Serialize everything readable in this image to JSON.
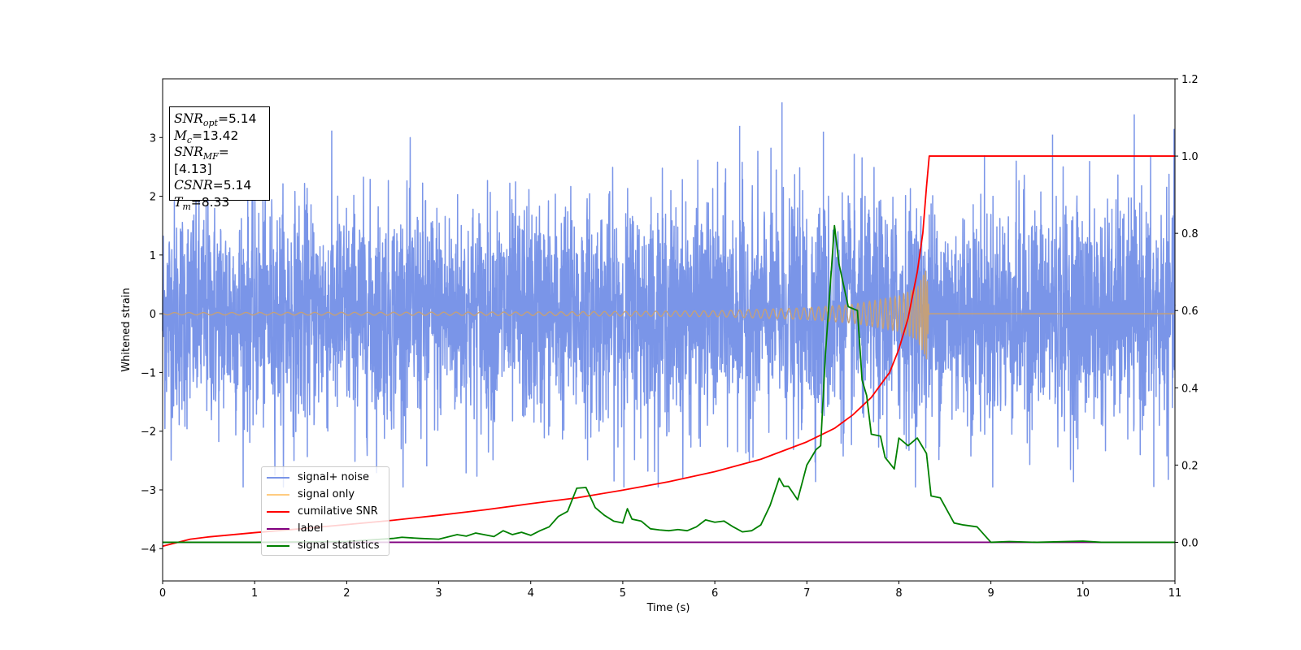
{
  "colors": {
    "signal_noise": "#7a95e8",
    "signal_only": "#ffcc80",
    "signal_only_overlap": "#c4a07a",
    "cumulative_snr": "#ff0000",
    "label": "#800080",
    "signal_statistics": "#008000"
  },
  "infobox": {
    "snr_opt": {
      "name": "SNR",
      "sub": "opt",
      "value": "=5.14"
    },
    "mc": {
      "name": "M",
      "sub": "c",
      "value": "=13.42"
    },
    "snr_mf": {
      "name": "SNR",
      "sub": "MF",
      "value": "=[4.13]"
    },
    "csnr": {
      "name": "CSNR",
      "value": "=5.14"
    },
    "tm": {
      "name": "T",
      "sub": "m",
      "value": "=8.33"
    }
  },
  "chart_data": {
    "type": "line",
    "xlabel": "Time (s)",
    "ylabel": "Whitened strain",
    "xlim": [
      0,
      11
    ],
    "ylim": [
      -4.55,
      4.0
    ],
    "y2lim": [
      -0.1,
      1.2
    ],
    "xticks": [
      "0",
      "1",
      "2",
      "3",
      "4",
      "5",
      "6",
      "7",
      "8",
      "9",
      "10",
      "11"
    ],
    "yticks": [
      "−4",
      "−3",
      "−2",
      "−1",
      "0",
      "1",
      "2",
      "3"
    ],
    "y2ticks": [
      "0.0",
      "0.2",
      "0.4",
      "0.6",
      "0.8",
      "1.0",
      "1.2"
    ],
    "legend_position": "lower-left",
    "series": [
      {
        "name": "signal+ noise",
        "axis": "left",
        "kind": "gaussian_noise",
        "approx_std": 0.95,
        "approx_range": [
          -2.95,
          3.6
        ],
        "notable_peaks": [
          [
            6.73,
            3.6
          ],
          [
            7.18,
            3.1
          ],
          [
            9.67,
            3.05
          ],
          [
            6.27,
            3.2
          ],
          [
            2.87,
            -2.6
          ],
          [
            10.77,
            -2.95
          ]
        ]
      },
      {
        "name": "signal only",
        "axis": "left",
        "kind": "chirp",
        "amplitude_points": [
          [
            0,
            0.02
          ],
          [
            4,
            0.03
          ],
          [
            6,
            0.05
          ],
          [
            7,
            0.1
          ],
          [
            7.5,
            0.16
          ],
          [
            8.0,
            0.3
          ],
          [
            8.2,
            0.45
          ],
          [
            8.3,
            0.78
          ],
          [
            8.33,
            0.0
          ]
        ],
        "merger_time": 8.33
      },
      {
        "name": "cumilative SNR",
        "axis": "right",
        "points": [
          [
            0,
            -0.01
          ],
          [
            0.3,
            0.008
          ],
          [
            0.5,
            0.014
          ],
          [
            1,
            0.025
          ],
          [
            1.5,
            0.035
          ],
          [
            2,
            0.046
          ],
          [
            2.5,
            0.057
          ],
          [
            3,
            0.07
          ],
          [
            3.5,
            0.084
          ],
          [
            4,
            0.1
          ],
          [
            4.5,
            0.115
          ],
          [
            5,
            0.135
          ],
          [
            5.5,
            0.157
          ],
          [
            6,
            0.183
          ],
          [
            6.5,
            0.215
          ],
          [
            7,
            0.26
          ],
          [
            7.3,
            0.295
          ],
          [
            7.5,
            0.33
          ],
          [
            7.7,
            0.375
          ],
          [
            7.9,
            0.44
          ],
          [
            8.0,
            0.5
          ],
          [
            8.1,
            0.58
          ],
          [
            8.2,
            0.7
          ],
          [
            8.26,
            0.8
          ],
          [
            8.3,
            0.92
          ],
          [
            8.33,
            1.0
          ],
          [
            11,
            1.0
          ]
        ]
      },
      {
        "name": "label",
        "axis": "right",
        "points": [
          [
            0,
            0.0
          ],
          [
            11,
            0.0
          ]
        ]
      },
      {
        "name": "signal statistics",
        "axis": "right",
        "points": [
          [
            0,
            0.0
          ],
          [
            1,
            0.0
          ],
          [
            2,
            0.002
          ],
          [
            2.5,
            0.01
          ],
          [
            2.6,
            0.013
          ],
          [
            2.8,
            0.01
          ],
          [
            3,
            0.008
          ],
          [
            3.2,
            0.02
          ],
          [
            3.3,
            0.016
          ],
          [
            3.4,
            0.024
          ],
          [
            3.6,
            0.015
          ],
          [
            3.7,
            0.03
          ],
          [
            3.8,
            0.02
          ],
          [
            3.9,
            0.026
          ],
          [
            4.0,
            0.018
          ],
          [
            4.1,
            0.03
          ],
          [
            4.2,
            0.04
          ],
          [
            4.3,
            0.067
          ],
          [
            4.4,
            0.08
          ],
          [
            4.5,
            0.14
          ],
          [
            4.6,
            0.142
          ],
          [
            4.7,
            0.09
          ],
          [
            4.8,
            0.07
          ],
          [
            4.9,
            0.055
          ],
          [
            5.0,
            0.05
          ],
          [
            5.05,
            0.087
          ],
          [
            5.1,
            0.06
          ],
          [
            5.2,
            0.055
          ],
          [
            5.3,
            0.035
          ],
          [
            5.4,
            0.032
          ],
          [
            5.5,
            0.03
          ],
          [
            5.6,
            0.033
          ],
          [
            5.7,
            0.03
          ],
          [
            5.8,
            0.04
          ],
          [
            5.9,
            0.058
          ],
          [
            6.0,
            0.052
          ],
          [
            6.1,
            0.055
          ],
          [
            6.2,
            0.04
          ],
          [
            6.3,
            0.027
          ],
          [
            6.4,
            0.03
          ],
          [
            6.5,
            0.045
          ],
          [
            6.6,
            0.095
          ],
          [
            6.7,
            0.166
          ],
          [
            6.75,
            0.145
          ],
          [
            6.8,
            0.145
          ],
          [
            6.9,
            0.11
          ],
          [
            7.0,
            0.2
          ],
          [
            7.1,
            0.24
          ],
          [
            7.15,
            0.25
          ],
          [
            7.2,
            0.48
          ],
          [
            7.3,
            0.82
          ],
          [
            7.35,
            0.72
          ],
          [
            7.45,
            0.61
          ],
          [
            7.55,
            0.6
          ],
          [
            7.6,
            0.42
          ],
          [
            7.65,
            0.38
          ],
          [
            7.7,
            0.28
          ],
          [
            7.8,
            0.275
          ],
          [
            7.85,
            0.22
          ],
          [
            7.95,
            0.19
          ],
          [
            8.0,
            0.27
          ],
          [
            8.1,
            0.25
          ],
          [
            8.2,
            0.27
          ],
          [
            8.3,
            0.23
          ],
          [
            8.35,
            0.12
          ],
          [
            8.45,
            0.115
          ],
          [
            8.6,
            0.05
          ],
          [
            8.7,
            0.045
          ],
          [
            8.85,
            0.04
          ],
          [
            9.0,
            0.0
          ],
          [
            9.2,
            0.002
          ],
          [
            9.5,
            0.0
          ],
          [
            10.0,
            0.003
          ],
          [
            10.2,
            0.0
          ],
          [
            10.5,
            0.0
          ],
          [
            11.0,
            0.0
          ]
        ]
      }
    ]
  }
}
